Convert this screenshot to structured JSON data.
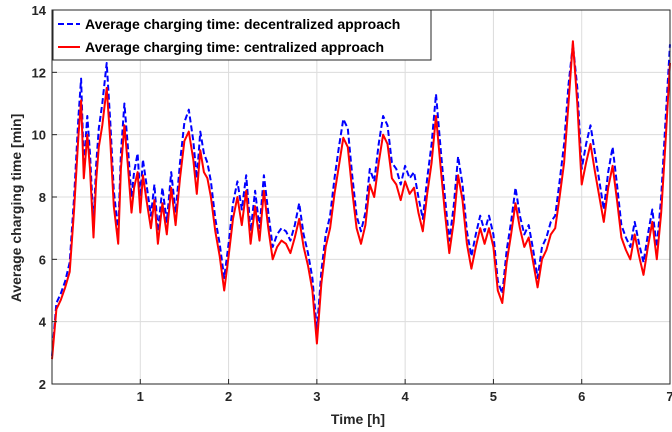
{
  "chart_data": {
    "type": "line",
    "xlabel": "Time [h]",
    "ylabel": "Average charging time [min]",
    "xlim": [
      0,
      7
    ],
    "ylim": [
      2,
      14
    ],
    "xticks": [
      1,
      2,
      3,
      4,
      5,
      6,
      7
    ],
    "yticks": [
      2,
      4,
      6,
      8,
      10,
      12,
      14
    ],
    "grid": true,
    "legend_position": "top-left",
    "series": [
      {
        "name": "Average charging time: decentralized approach",
        "color": "#0000ff",
        "style": "dashed",
        "x": [
          0,
          0.05,
          0.1,
          0.15,
          0.2,
          0.25,
          0.3,
          0.33,
          0.36,
          0.4,
          0.43,
          0.47,
          0.5,
          0.53,
          0.57,
          0.62,
          0.66,
          0.7,
          0.75,
          0.78,
          0.82,
          0.86,
          0.9,
          0.93,
          0.97,
          1.0,
          1.03,
          1.07,
          1.12,
          1.16,
          1.2,
          1.25,
          1.3,
          1.35,
          1.4,
          1.45,
          1.5,
          1.55,
          1.6,
          1.64,
          1.68,
          1.72,
          1.76,
          1.8,
          1.85,
          1.9,
          1.95,
          2.0,
          2.05,
          2.1,
          2.15,
          2.2,
          2.25,
          2.3,
          2.35,
          2.4,
          2.45,
          2.5,
          2.55,
          2.6,
          2.65,
          2.7,
          2.75,
          2.8,
          2.85,
          2.9,
          2.95,
          3.0,
          3.05,
          3.1,
          3.15,
          3.2,
          3.25,
          3.3,
          3.35,
          3.4,
          3.45,
          3.5,
          3.55,
          3.6,
          3.65,
          3.7,
          3.75,
          3.8,
          3.85,
          3.9,
          3.95,
          4.0,
          4.05,
          4.1,
          4.15,
          4.2,
          4.25,
          4.3,
          4.35,
          4.4,
          4.45,
          4.5,
          4.55,
          4.6,
          4.65,
          4.7,
          4.75,
          4.8,
          4.85,
          4.9,
          4.95,
          5.0,
          5.05,
          5.1,
          5.15,
          5.2,
          5.25,
          5.3,
          5.35,
          5.4,
          5.45,
          5.5,
          5.55,
          5.6,
          5.65,
          5.7,
          5.75,
          5.8,
          5.85,
          5.9,
          5.95,
          6.0,
          6.05,
          6.1,
          6.15,
          6.2,
          6.25,
          6.3,
          6.35,
          6.4,
          6.45,
          6.5,
          6.55,
          6.6,
          6.65,
          6.7,
          6.75,
          6.8,
          6.85,
          6.9,
          6.95,
          7.0
        ],
        "y": [
          2.9,
          4.6,
          4.9,
          5.3,
          5.9,
          8.0,
          10.6,
          11.8,
          9.0,
          10.6,
          9.4,
          7.1,
          9.0,
          10.2,
          11.0,
          12.3,
          10.4,
          8.2,
          6.9,
          9.4,
          11.0,
          9.6,
          8.0,
          8.8,
          9.4,
          8.0,
          9.2,
          8.4,
          7.4,
          8.4,
          6.9,
          8.3,
          7.2,
          8.8,
          7.5,
          9.1,
          10.4,
          10.8,
          9.8,
          8.6,
          10.1,
          9.4,
          9.1,
          8.5,
          7.3,
          6.5,
          5.4,
          6.5,
          7.8,
          8.5,
          7.6,
          8.7,
          6.9,
          8.2,
          7.0,
          8.7,
          7.5,
          6.4,
          6.8,
          7.0,
          6.9,
          6.6,
          7.1,
          7.8,
          6.8,
          6.2,
          5.4,
          3.7,
          5.6,
          6.8,
          7.4,
          8.6,
          9.6,
          10.5,
          10.2,
          8.7,
          7.4,
          6.9,
          7.5,
          8.9,
          8.5,
          9.7,
          10.6,
          10.3,
          9.1,
          8.9,
          8.4,
          9.0,
          8.6,
          8.8,
          8.0,
          7.3,
          8.6,
          9.7,
          11.3,
          9.6,
          8.0,
          6.6,
          7.7,
          9.3,
          8.4,
          6.9,
          6.1,
          6.8,
          7.4,
          6.9,
          7.4,
          6.8,
          5.3,
          4.9,
          6.3,
          7.2,
          8.3,
          7.4,
          6.8,
          7.1,
          6.3,
          5.4,
          6.4,
          6.7,
          7.2,
          7.4,
          8.5,
          9.7,
          11.6,
          12.9,
          11.5,
          8.9,
          9.7,
          10.3,
          9.4,
          8.5,
          7.6,
          8.8,
          9.6,
          8.4,
          7.1,
          6.7,
          6.4,
          7.2,
          6.5,
          5.9,
          6.8,
          7.6,
          6.4,
          8.0,
          10.5,
          12.9
        ]
      },
      {
        "name": "Average charging time: centralized approach",
        "color": "#ff0000",
        "style": "solid",
        "x": [
          0,
          0.05,
          0.1,
          0.15,
          0.2,
          0.25,
          0.3,
          0.33,
          0.36,
          0.4,
          0.43,
          0.47,
          0.5,
          0.53,
          0.57,
          0.62,
          0.66,
          0.7,
          0.75,
          0.78,
          0.82,
          0.86,
          0.9,
          0.93,
          0.97,
          1.0,
          1.03,
          1.07,
          1.12,
          1.16,
          1.2,
          1.25,
          1.3,
          1.35,
          1.4,
          1.45,
          1.5,
          1.55,
          1.6,
          1.64,
          1.68,
          1.72,
          1.76,
          1.8,
          1.85,
          1.9,
          1.95,
          2.0,
          2.05,
          2.1,
          2.15,
          2.2,
          2.25,
          2.3,
          2.35,
          2.4,
          2.45,
          2.5,
          2.55,
          2.6,
          2.65,
          2.7,
          2.75,
          2.8,
          2.85,
          2.9,
          2.95,
          3.0,
          3.05,
          3.1,
          3.15,
          3.2,
          3.25,
          3.3,
          3.35,
          3.4,
          3.45,
          3.5,
          3.55,
          3.6,
          3.65,
          3.7,
          3.75,
          3.8,
          3.85,
          3.9,
          3.95,
          4.0,
          4.05,
          4.1,
          4.15,
          4.2,
          4.25,
          4.3,
          4.35,
          4.4,
          4.45,
          4.5,
          4.55,
          4.6,
          4.65,
          4.7,
          4.75,
          4.8,
          4.85,
          4.9,
          4.95,
          5.0,
          5.05,
          5.1,
          5.15,
          5.2,
          5.25,
          5.3,
          5.35,
          5.4,
          5.45,
          5.5,
          5.55,
          5.6,
          5.65,
          5.7,
          5.75,
          5.8,
          5.85,
          5.9,
          5.95,
          6.0,
          6.05,
          6.1,
          6.15,
          6.2,
          6.25,
          6.3,
          6.35,
          6.4,
          6.45,
          6.5,
          6.55,
          6.6,
          6.65,
          6.7,
          6.75,
          6.8,
          6.85,
          6.9,
          6.95,
          7.0
        ],
        "y": [
          2.8,
          4.4,
          4.7,
          5.1,
          5.6,
          7.6,
          10.0,
          11.1,
          8.6,
          10.0,
          8.9,
          6.7,
          8.5,
          9.6,
          10.3,
          11.5,
          9.8,
          7.7,
          6.5,
          8.9,
          10.3,
          9.0,
          7.5,
          8.3,
          8.8,
          7.5,
          8.7,
          7.9,
          7.0,
          7.9,
          6.5,
          7.8,
          6.8,
          8.3,
          7.1,
          8.6,
          9.8,
          10.1,
          9.2,
          8.1,
          9.5,
          8.8,
          8.6,
          8.0,
          6.9,
          6.1,
          5.0,
          6.1,
          7.3,
          8.0,
          7.1,
          8.2,
          6.5,
          7.7,
          6.6,
          8.2,
          7.0,
          6.0,
          6.4,
          6.6,
          6.5,
          6.2,
          6.7,
          7.3,
          6.4,
          5.8,
          5.0,
          3.3,
          5.2,
          6.4,
          7.0,
          8.1,
          9.0,
          9.9,
          9.6,
          8.2,
          7.0,
          6.5,
          7.1,
          8.4,
          8.0,
          9.1,
          10.0,
          9.7,
          8.6,
          8.4,
          7.9,
          8.5,
          8.1,
          8.3,
          7.5,
          6.9,
          8.1,
          9.1,
          10.6,
          9.0,
          7.5,
          6.2,
          7.2,
          8.7,
          7.9,
          6.5,
          5.7,
          6.4,
          7.0,
          6.5,
          7.0,
          6.4,
          5.0,
          4.6,
          5.9,
          6.8,
          7.8,
          7.0,
          6.4,
          6.7,
          5.9,
          5.1,
          6.0,
          6.3,
          6.8,
          7.0,
          8.0,
          9.1,
          11.0,
          13.0,
          11.0,
          8.4,
          9.1,
          9.7,
          8.8,
          8.0,
          7.2,
          8.3,
          9.0,
          7.9,
          6.7,
          6.3,
          6.0,
          6.8,
          6.1,
          5.5,
          6.4,
          7.2,
          6.0,
          7.5,
          9.8,
          12.3
        ]
      }
    ]
  }
}
